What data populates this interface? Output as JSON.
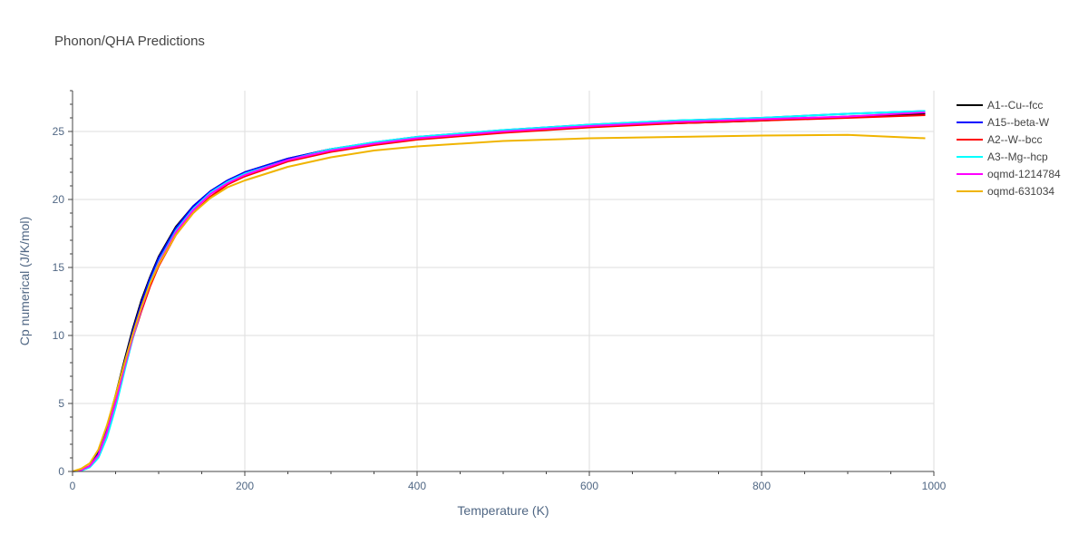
{
  "chart_data": {
    "type": "line",
    "title": "Phonon/QHA Predictions",
    "xlabel": "Temperature (K)",
    "ylabel": "Cp numerical (J/K/mol)",
    "xlim": [
      0,
      1000
    ],
    "ylim": [
      0,
      28
    ],
    "xticks": [
      0,
      200,
      400,
      600,
      800,
      1000
    ],
    "yticks": [
      0,
      5,
      10,
      15,
      20,
      25
    ],
    "grid": true,
    "legend_position": "top-right",
    "x": [
      0,
      10,
      20,
      30,
      40,
      50,
      60,
      70,
      80,
      90,
      100,
      120,
      140,
      160,
      180,
      200,
      250,
      300,
      350,
      400,
      500,
      600,
      700,
      800,
      900,
      990
    ],
    "series": [
      {
        "name": "A1--Cu--fcc",
        "color": "#000000",
        "values": [
          0,
          0.1,
          0.4,
          1.4,
          3.2,
          5.6,
          8.1,
          10.5,
          12.6,
          14.3,
          15.8,
          18.0,
          19.5,
          20.6,
          21.4,
          22.0,
          23.0,
          23.7,
          24.1,
          24.5,
          25.0,
          25.4,
          25.6,
          25.8,
          26.1,
          26.3
        ]
      },
      {
        "name": "A15--beta-W",
        "color": "#0000ff",
        "values": [
          0,
          0.1,
          0.4,
          1.3,
          3.0,
          5.3,
          7.9,
          10.3,
          12.4,
          14.2,
          15.7,
          17.9,
          19.5,
          20.6,
          21.4,
          22.0,
          23.0,
          23.7,
          24.2,
          24.6,
          25.1,
          25.5,
          25.8,
          26.0,
          26.3,
          26.5
        ]
      },
      {
        "name": "A2--W--bcc",
        "color": "#ff0000",
        "values": [
          0,
          0.1,
          0.4,
          1.2,
          2.8,
          5.0,
          7.5,
          9.8,
          11.8,
          13.6,
          15.1,
          17.4,
          19.0,
          20.2,
          21.1,
          21.7,
          22.8,
          23.5,
          24.0,
          24.4,
          24.9,
          25.3,
          25.6,
          25.8,
          26.0,
          26.2
        ]
      },
      {
        "name": "A3--Mg--hcp",
        "color": "#00ffff",
        "values": [
          0,
          0.05,
          0.3,
          1.0,
          2.5,
          4.7,
          7.3,
          9.8,
          12.0,
          13.9,
          15.4,
          17.7,
          19.3,
          20.5,
          21.3,
          21.9,
          22.9,
          23.7,
          24.2,
          24.6,
          25.1,
          25.5,
          25.8,
          26.0,
          26.3,
          26.5
        ]
      },
      {
        "name": "oqmd-1214784",
        "color": "#ff00ff",
        "values": [
          0,
          0.1,
          0.4,
          1.2,
          2.9,
          5.1,
          7.6,
          9.9,
          12.0,
          13.8,
          15.3,
          17.6,
          19.2,
          20.4,
          21.2,
          21.8,
          22.9,
          23.6,
          24.1,
          24.5,
          25.0,
          25.4,
          25.7,
          25.9,
          26.1,
          26.4
        ]
      },
      {
        "name": "oqmd-631034",
        "color": "#f0b400",
        "values": [
          0,
          0.2,
          0.6,
          1.6,
          3.4,
          5.6,
          7.9,
          10.1,
          12.1,
          13.8,
          15.2,
          17.4,
          19.0,
          20.1,
          20.9,
          21.4,
          22.4,
          23.1,
          23.6,
          23.9,
          24.3,
          24.5,
          24.6,
          24.7,
          24.75,
          24.5
        ]
      }
    ]
  }
}
